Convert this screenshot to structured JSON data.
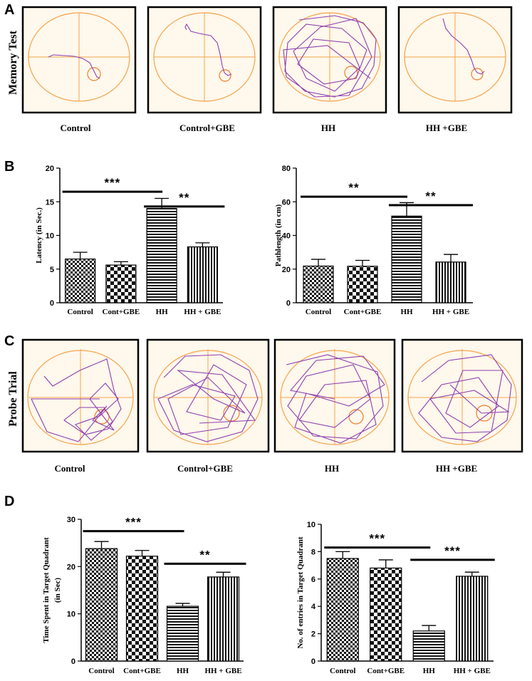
{
  "panels": {
    "A": {
      "letter": "A",
      "row_title": "Memory Test",
      "groups": [
        "Control",
        "Control+GBE",
        "HH",
        "HH +GBE"
      ]
    },
    "B": {
      "letter": "B"
    },
    "C": {
      "letter": "C",
      "row_title": "Probe Trial",
      "groups": [
        "Control",
        "Control+GBE",
        "HH",
        "HH +GBE"
      ]
    },
    "D": {
      "letter": "D"
    }
  },
  "colors": {
    "frame": "#000000",
    "arena_fill": "#fff8ec",
    "quadrant_lines": "#f5a34a",
    "track": "#8e3fb0",
    "target": "#ef7f2a"
  },
  "chart_data": [
    {
      "id": "B-left",
      "type": "bar",
      "categories": [
        "Control",
        "Cont+GBE",
        "HH",
        "HH + GBE"
      ],
      "values": [
        6.5,
        5.6,
        14.0,
        8.3
      ],
      "errors": [
        1.0,
        0.5,
        1.5,
        0.6
      ],
      "patterns": [
        "checker-fine",
        "checker-bold",
        "hstripe",
        "vstripe"
      ],
      "ylabel": "Latency (in Sec.)",
      "ylim": [
        0,
        20
      ],
      "ticks": [
        0,
        5,
        10,
        15,
        20
      ],
      "significance": [
        {
          "from": 0,
          "to": 2,
          "label": "***",
          "level": 16.5
        },
        {
          "from": 2,
          "to": 3,
          "label": "**",
          "level": 14.3
        }
      ]
    },
    {
      "id": "B-right",
      "type": "bar",
      "categories": [
        "Control",
        "Cont+GBE",
        "HH",
        "HH + GBE"
      ],
      "values": [
        21.8,
        21.7,
        51.5,
        24.2
      ],
      "errors": [
        4.0,
        3.5,
        8.0,
        4.5
      ],
      "patterns": [
        "checker-fine",
        "checker-bold",
        "hstripe",
        "vstripe"
      ],
      "ylabel": "Pathlength (in cm)",
      "ylim": [
        0,
        80
      ],
      "ticks": [
        0,
        20,
        40,
        60,
        80
      ],
      "significance": [
        {
          "from": 0,
          "to": 2,
          "label": "**",
          "level": 63
        },
        {
          "from": 2,
          "to": 3,
          "label": "**",
          "level": 58
        }
      ]
    },
    {
      "id": "D-left",
      "type": "bar",
      "categories": [
        "Control",
        "Cont+GBE",
        "HH",
        "HH + GBE"
      ],
      "values": [
        23.8,
        22.2,
        11.6,
        17.8
      ],
      "errors": [
        1.5,
        1.2,
        0.6,
        1.0
      ],
      "patterns": [
        "checker-fine",
        "checker-bold",
        "hstripe",
        "vstripe"
      ],
      "ylabel": "Time Spent in Target  Quadrant",
      "ylabel2": "(in  Sec)",
      "ylim": [
        0,
        30
      ],
      "ticks": [
        0,
        10,
        20,
        30
      ],
      "significance": [
        {
          "from": 0,
          "to": 2,
          "label": "***",
          "level": 27.5
        },
        {
          "from": 2,
          "to": 3,
          "label": "**",
          "level": 20.6
        }
      ]
    },
    {
      "id": "D-right",
      "type": "bar",
      "categories": [
        "Control",
        "Cont+GBE",
        "HH",
        "HH + GBE"
      ],
      "values": [
        7.5,
        6.8,
        2.2,
        6.2
      ],
      "errors": [
        0.5,
        0.6,
        0.4,
        0.3
      ],
      "patterns": [
        "checker-fine",
        "checker-bold",
        "hstripe",
        "vstripe"
      ],
      "ylabel": "No. of  entries in  Target  Quadrant",
      "ylim": [
        0,
        10
      ],
      "ticks": [
        0,
        2,
        4,
        6,
        8,
        10
      ],
      "significance": [
        {
          "from": 0,
          "to": 2,
          "label": "***",
          "level": 8.3
        },
        {
          "from": 2,
          "to": 3,
          "label": "***",
          "level": 7.4
        }
      ]
    }
  ]
}
